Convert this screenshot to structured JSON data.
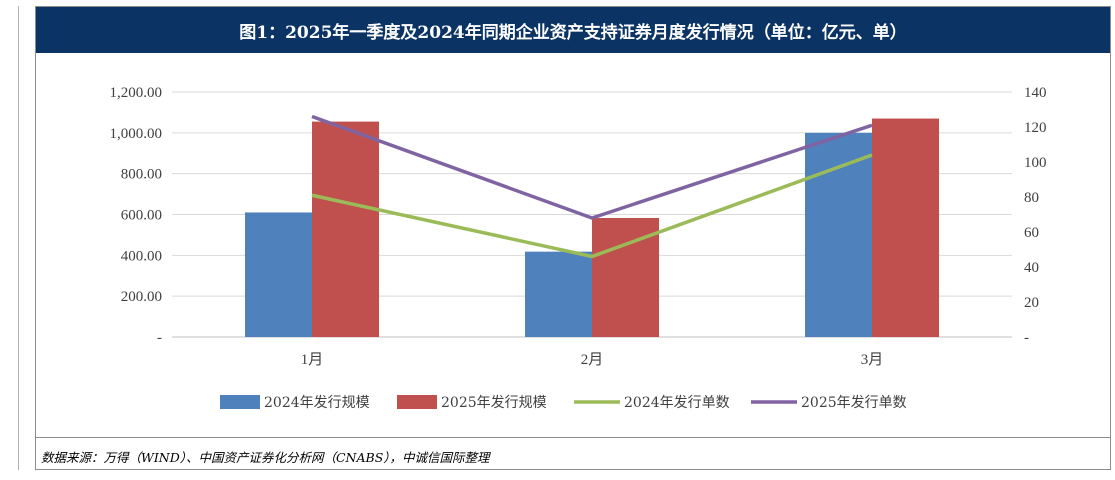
{
  "title": "图1：2025年一季度及2024年同期企业资产支持证券月度发行情况（单位：亿元、单）",
  "source": "数据来源：万得（WIND）、中国资产证券化分析网（CNABS），中诚信国际整理",
  "chart_data": {
    "type": "bar",
    "categories": [
      "1月",
      "2月",
      "3月"
    ],
    "left_axis": {
      "ylim": [
        0,
        1200
      ],
      "ticks": [
        0,
        200,
        400,
        600,
        800,
        1000,
        1200
      ],
      "tick_labels": [
        "-",
        "200.00",
        "400.00",
        "600.00",
        "800.00",
        "1,000.00",
        "1,200.00"
      ]
    },
    "right_axis": {
      "ylim": [
        0,
        140
      ],
      "ticks": [
        0,
        20,
        40,
        60,
        80,
        100,
        120,
        140
      ],
      "tick_labels": [
        "-",
        "20",
        "40",
        "60",
        "80",
        "100",
        "120",
        "140"
      ]
    },
    "series": [
      {
        "name": "2024年发行规模",
        "kind": "bar",
        "axis": "left",
        "color": "#4f81bd",
        "values": [
          610,
          418,
          1000
        ]
      },
      {
        "name": "2025年发行规模",
        "kind": "bar",
        "axis": "left",
        "color": "#c0504d",
        "values": [
          1055,
          583,
          1070
        ]
      },
      {
        "name": "2024年发行单数",
        "kind": "line",
        "axis": "right",
        "color": "#9bbb59",
        "values": [
          81,
          46,
          104
        ]
      },
      {
        "name": "2025年发行单数",
        "kind": "line",
        "axis": "right",
        "color": "#8064a2",
        "values": [
          126,
          68,
          121
        ]
      }
    ],
    "grid": true,
    "legend": "bottom"
  }
}
